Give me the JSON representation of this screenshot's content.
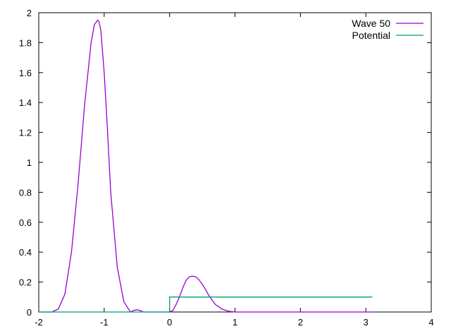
{
  "chart_data": {
    "type": "line",
    "title": "",
    "xlabel": "",
    "ylabel": "",
    "xlim": [
      -2,
      4
    ],
    "ylim": [
      0,
      2
    ],
    "x_ticks": [
      -2,
      -1,
      0,
      1,
      2,
      3,
      4
    ],
    "y_ticks": [
      0,
      0.2,
      0.4,
      0.6,
      0.8,
      1,
      1.2,
      1.4,
      1.6,
      1.8,
      2
    ],
    "x_tick_labels": [
      "-2",
      "-1",
      "0",
      "1",
      "2",
      "3",
      "4"
    ],
    "y_tick_labels": [
      "0",
      "0.2",
      "0.4",
      "0.6",
      "0.8",
      "1",
      "1.2",
      "1.4",
      "1.6",
      "1.8",
      "2"
    ],
    "grid": false,
    "legend_position": "top-right",
    "series": [
      {
        "name": "Wave 50",
        "color": "#9400d3",
        "x": [
          -2.0,
          -1.8,
          -1.7,
          -1.6,
          -1.5,
          -1.4,
          -1.3,
          -1.2,
          -1.15,
          -1.1,
          -1.08,
          -1.05,
          -1.0,
          -0.95,
          -0.9,
          -0.8,
          -0.7,
          -0.6,
          -0.55,
          -0.5,
          -0.45,
          -0.4,
          -0.3,
          -0.2,
          -0.1,
          0.0,
          0.05,
          0.1,
          0.15,
          0.2,
          0.25,
          0.3,
          0.35,
          0.4,
          0.45,
          0.5,
          0.55,
          0.6,
          0.65,
          0.7,
          0.8,
          0.9,
          1.0,
          1.5,
          2.0,
          2.5,
          3.1
        ],
        "y": [
          0.0,
          0.0,
          0.02,
          0.12,
          0.4,
          0.85,
          1.38,
          1.8,
          1.92,
          1.95,
          1.94,
          1.88,
          1.6,
          1.22,
          0.8,
          0.3,
          0.07,
          0.0,
          0.01,
          0.015,
          0.01,
          0.0,
          0.0,
          0.0,
          0.0,
          0.0,
          0.01,
          0.05,
          0.1,
          0.16,
          0.21,
          0.235,
          0.24,
          0.235,
          0.215,
          0.185,
          0.15,
          0.11,
          0.08,
          0.05,
          0.02,
          0.005,
          0.0,
          0.0,
          0.0,
          0.0,
          0.0
        ]
      },
      {
        "name": "Potential",
        "color": "#009e73",
        "x": [
          -2.0,
          0.0,
          0.0,
          3.1
        ],
        "y": [
          0.0,
          0.0,
          0.1,
          0.1
        ]
      }
    ]
  }
}
